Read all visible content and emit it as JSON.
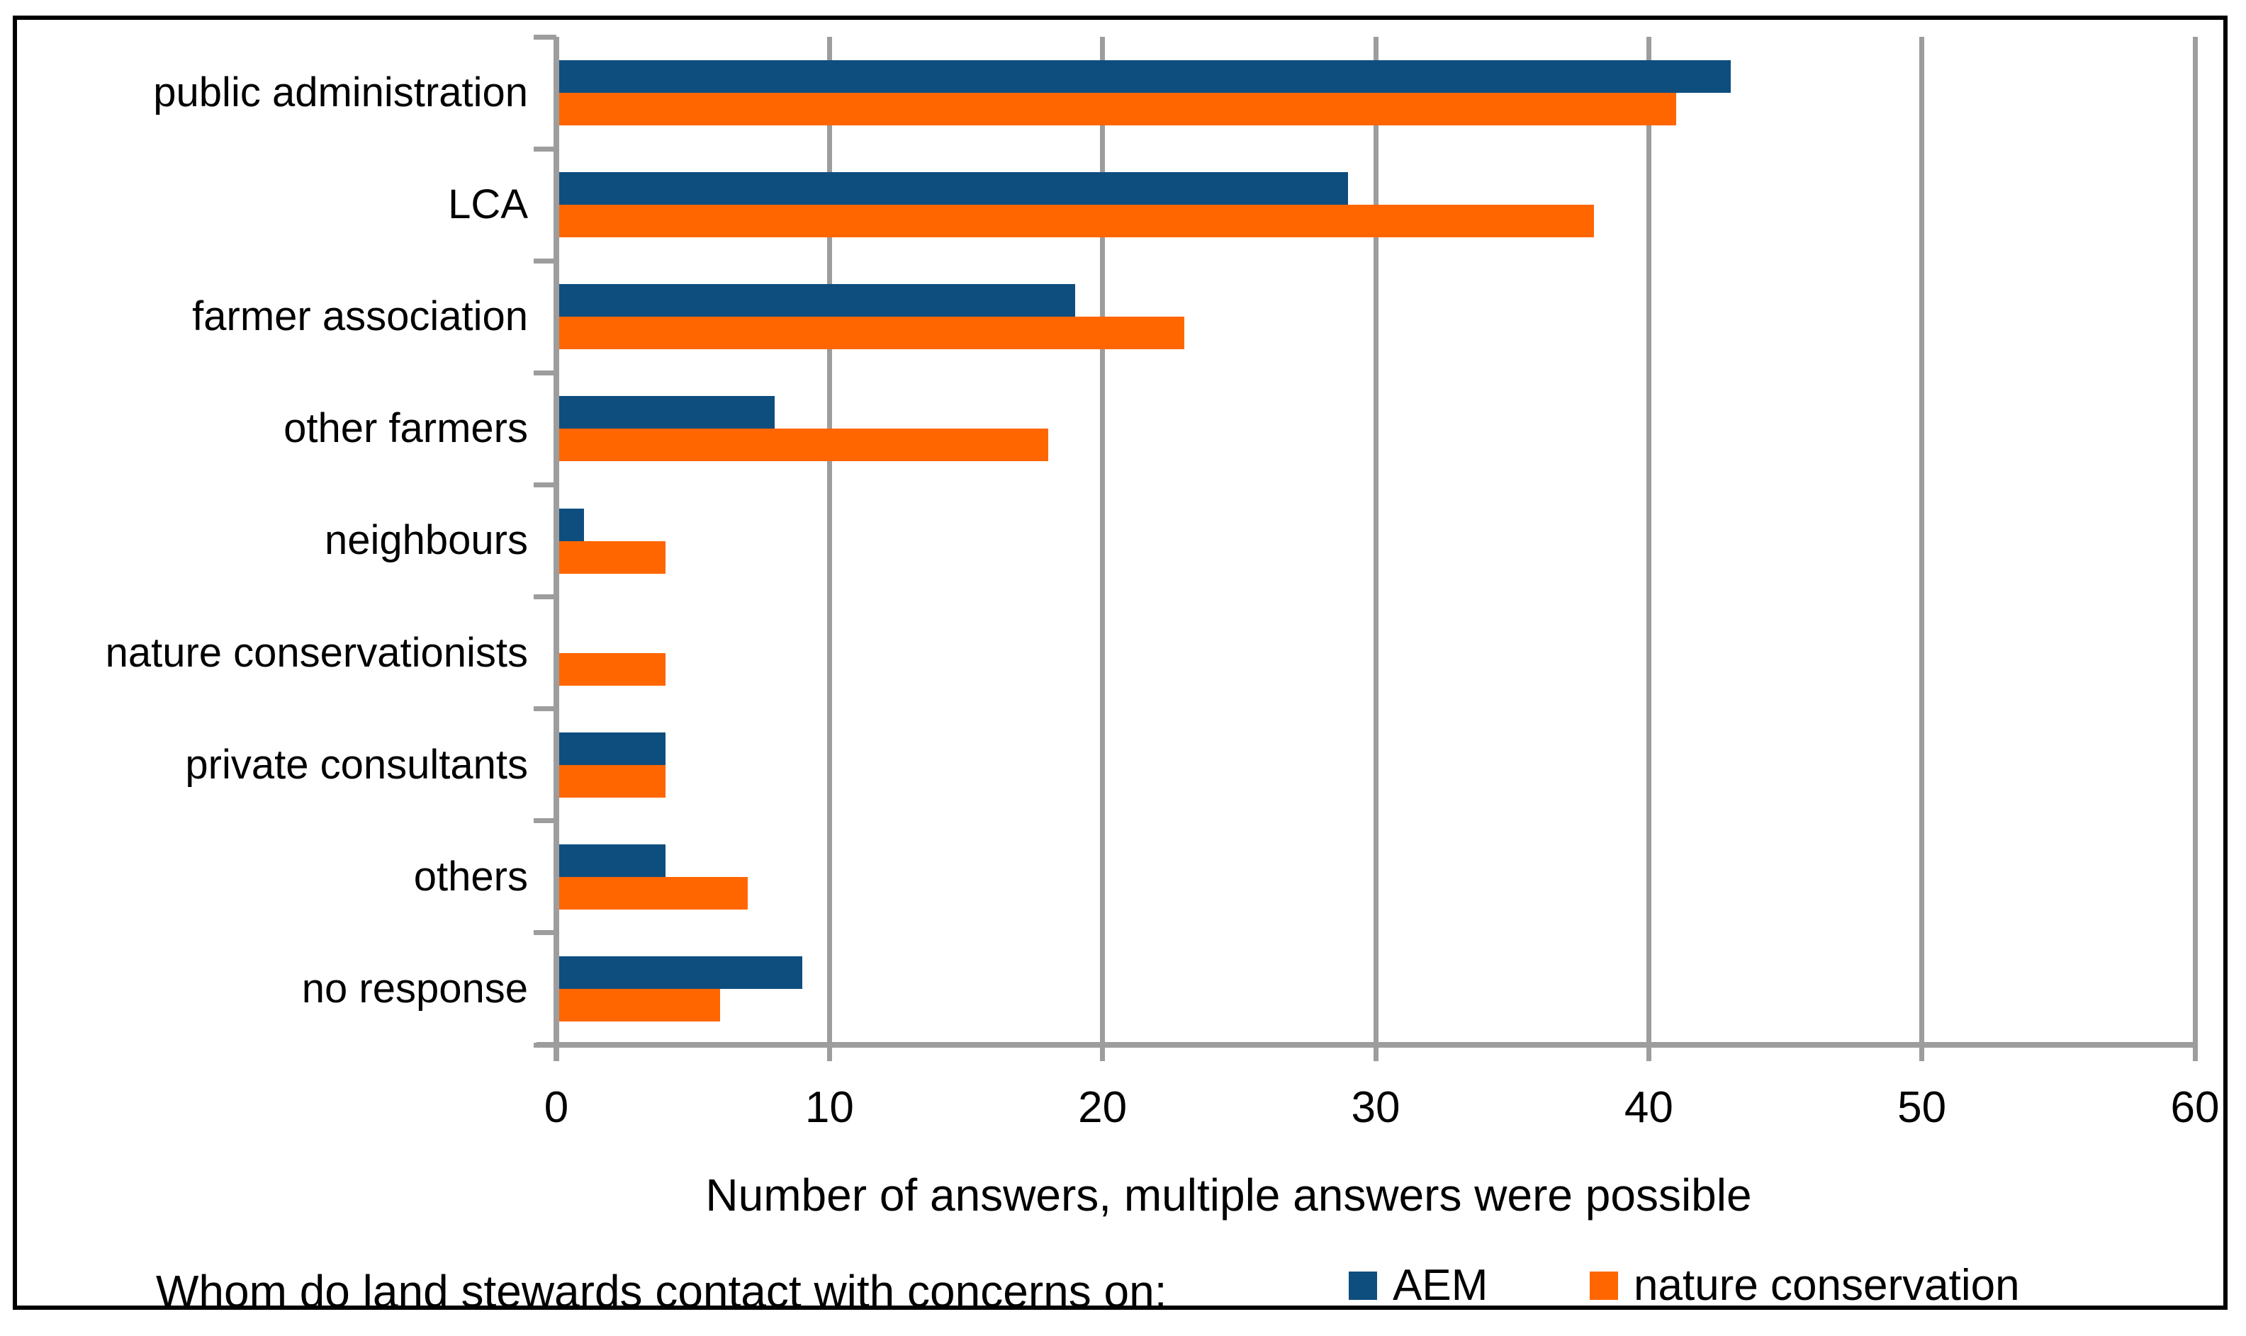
{
  "figure": {
    "axis_title": "Number of answers, multiple answers were possible",
    "footer_question": "Whom do land stewards contact with concerns on:"
  },
  "chart_data": {
    "type": "bar",
    "orientation": "horizontal",
    "title": "",
    "xlabel": "Number of answers, multiple answers were possible",
    "ylabel": "",
    "xlim": [
      0,
      60
    ],
    "x_ticks": [
      0,
      10,
      20,
      30,
      40,
      50,
      60
    ],
    "grid": "vertical",
    "legend_position": "bottom",
    "categories": [
      "public administration",
      "LCA",
      "farmer association",
      "other farmers",
      "neighbours",
      "nature conservationists",
      "private consultants",
      "others",
      "no response"
    ],
    "series": [
      {
        "name": "AEM",
        "color": "#0E4E7F",
        "values": [
          43,
          29,
          19,
          8,
          1,
          0,
          4,
          4,
          9
        ]
      },
      {
        "name": "nature conservation",
        "color": "#FF6600",
        "values": [
          41,
          38,
          23,
          18,
          4,
          4,
          4,
          7,
          6
        ]
      }
    ]
  },
  "colors": {
    "background": "#FFFFFF",
    "border": "#000000",
    "gridline": "#9D9D9D",
    "axis": "#9D9D9D",
    "text": "#000000",
    "series_aem": "#0E4E7F",
    "series_nature_conservation": "#FF6600"
  }
}
